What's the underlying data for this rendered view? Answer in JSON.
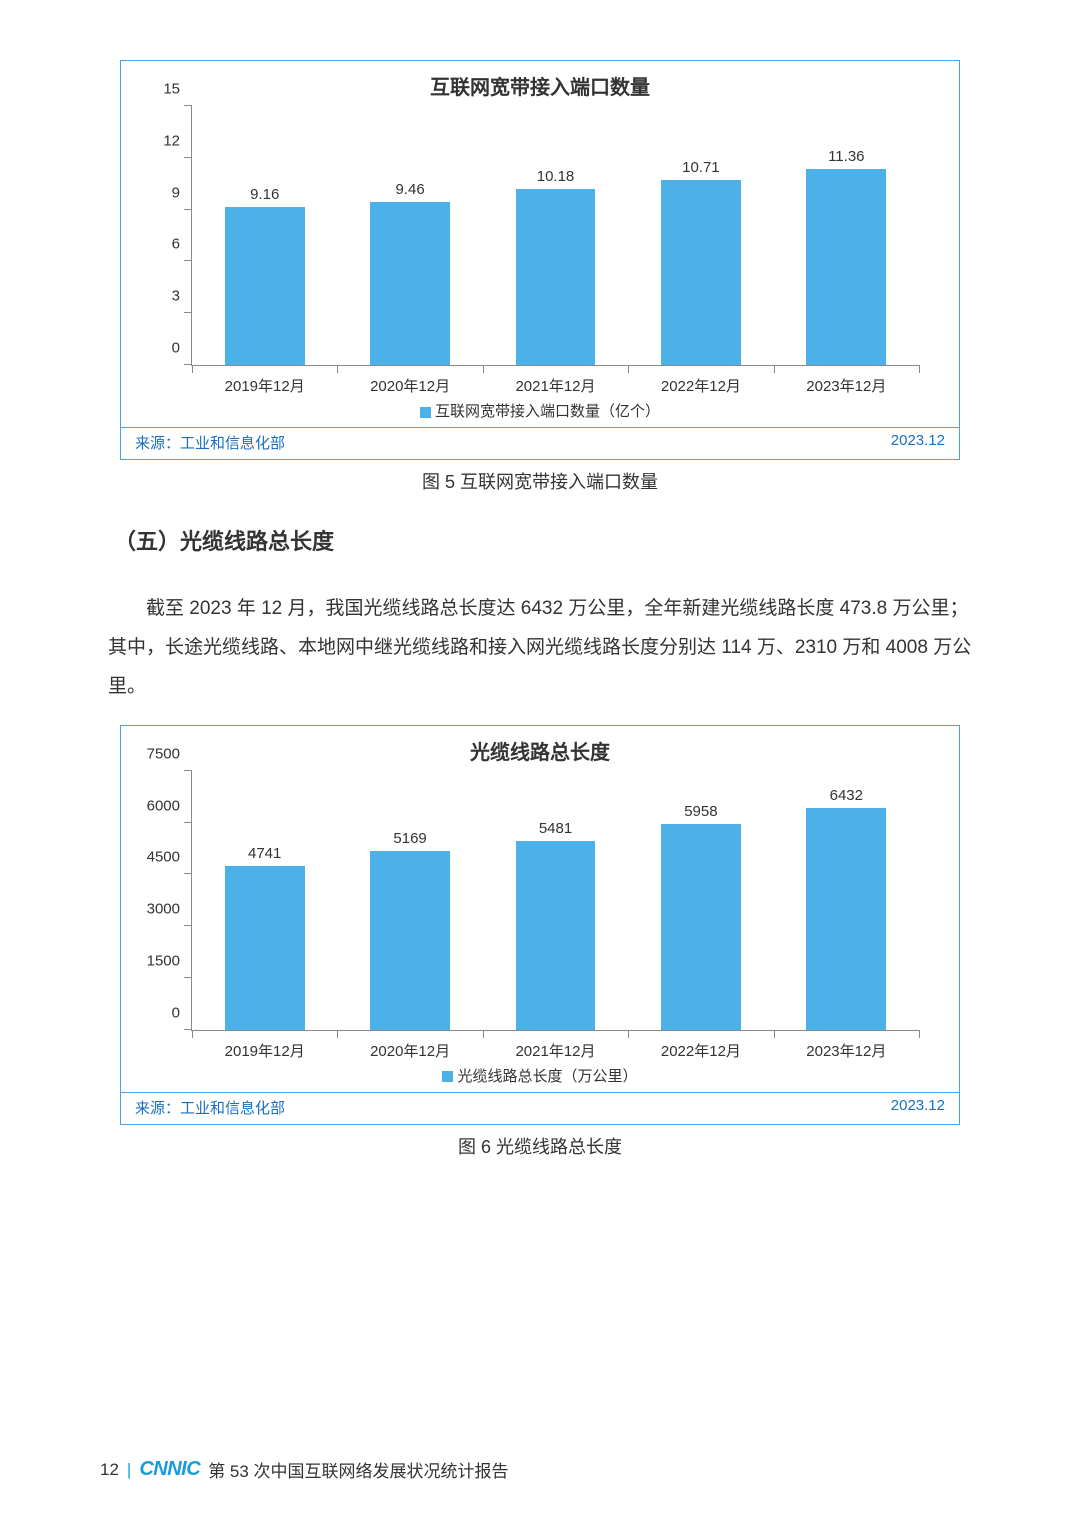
{
  "chart1": {
    "type": "bar",
    "title": "互联网宽带接入端口数量",
    "categories": [
      "2019年12月",
      "2020年12月",
      "2021年12月",
      "2022年12月",
      "2023年12月"
    ],
    "values": [
      9.16,
      9.46,
      10.18,
      10.71,
      11.36
    ],
    "ylim": [
      0,
      15
    ],
    "ytick_step": 3,
    "bar_color": "#4bb1e8",
    "bar_width_pct": 11,
    "border_color": "#4aa0e6",
    "axis_color": "#888888",
    "label_fontsize": 15,
    "title_fontsize": 20,
    "legend_label": "互联网宽带接入端口数量（亿个）",
    "source_label": "来源：工业和信息化部",
    "source_date": "2023.12",
    "source_color": "#1a6fbf"
  },
  "caption1": "图 5  互联网宽带接入端口数量",
  "section_heading": "（五）光缆线路总长度",
  "paragraph": "截至 2023 年 12 月，我国光缆线路总长度达 6432 万公里，全年新建光缆线路长度 473.8 万公里；其中，长途光缆线路、本地网中继光缆线路和接入网光缆线路长度分别达 114 万、2310 万和 4008 万公里。",
  "chart2": {
    "type": "bar",
    "title": "光缆线路总长度",
    "categories": [
      "2019年12月",
      "2020年12月",
      "2021年12月",
      "2022年12月",
      "2023年12月"
    ],
    "values": [
      4741,
      5169,
      5481,
      5958,
      6432
    ],
    "ylim": [
      0,
      7500
    ],
    "ytick_step": 1500,
    "bar_color": "#4bb1e8",
    "bar_width_pct": 11,
    "border_color": "#4aa0e6",
    "axis_color": "#888888",
    "label_fontsize": 15,
    "title_fontsize": 20,
    "legend_label": "光缆线路总长度（万公里）",
    "source_label": "来源：工业和信息化部",
    "source_date": "2023.12",
    "source_color": "#1a6fbf"
  },
  "caption2": "图 6  光缆线路总长度",
  "footer": {
    "page_number": "12",
    "logo_text": "CNNIC",
    "report_title": "第 53 次中国互联网络发展状况统计报告"
  }
}
